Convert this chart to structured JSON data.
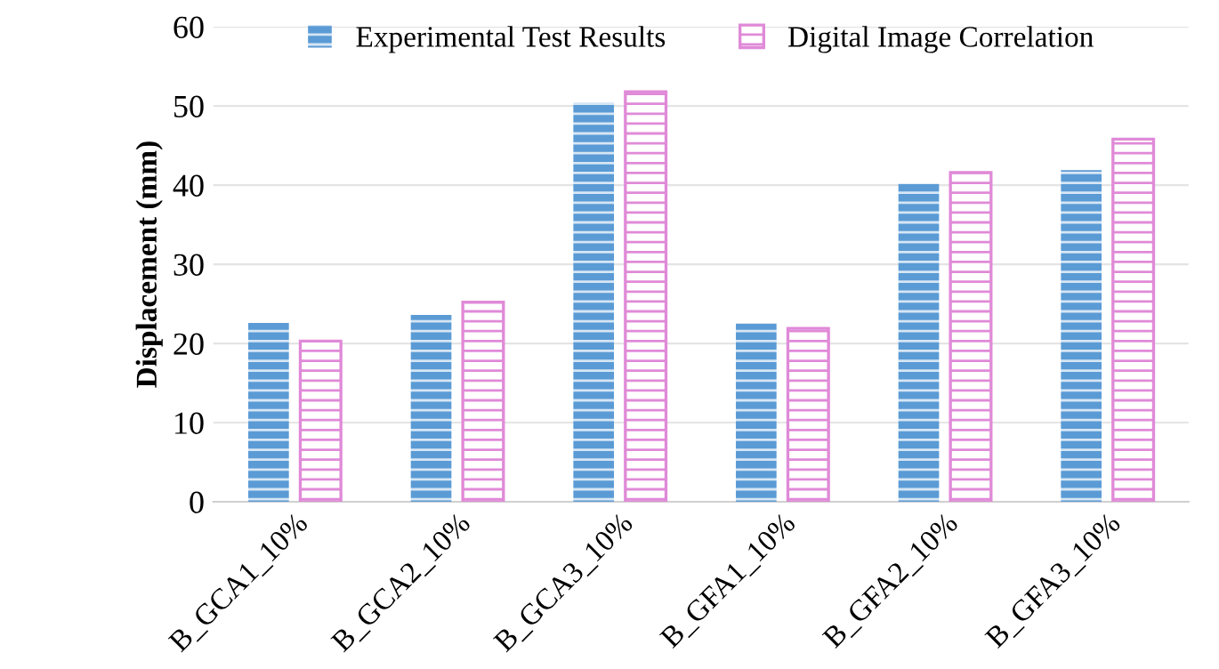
{
  "chart_data": {
    "type": "bar",
    "ylabel": "Displacement (mm)",
    "categories": [
      "B_GCA1_10%",
      "B_GCA2_10%",
      "B_GCA3_10%",
      "B_GFA1_10%",
      "B_GFA2_10%",
      "B_GFA3_10%"
    ],
    "series": [
      {
        "name": "Experimental Test Results",
        "color": "#5b9bd5",
        "values": [
          22.6,
          23.6,
          50.4,
          22.5,
          40.2,
          41.9
        ]
      },
      {
        "name": "Digital Image Correlation",
        "color": "#e08ad8",
        "values": [
          20.3,
          25.2,
          51.8,
          21.9,
          41.6,
          45.8
        ]
      }
    ],
    "ylim": [
      0,
      60
    ],
    "yticks": [
      0,
      10,
      20,
      30,
      40,
      50,
      60
    ],
    "grid": "y",
    "legend": "top"
  }
}
